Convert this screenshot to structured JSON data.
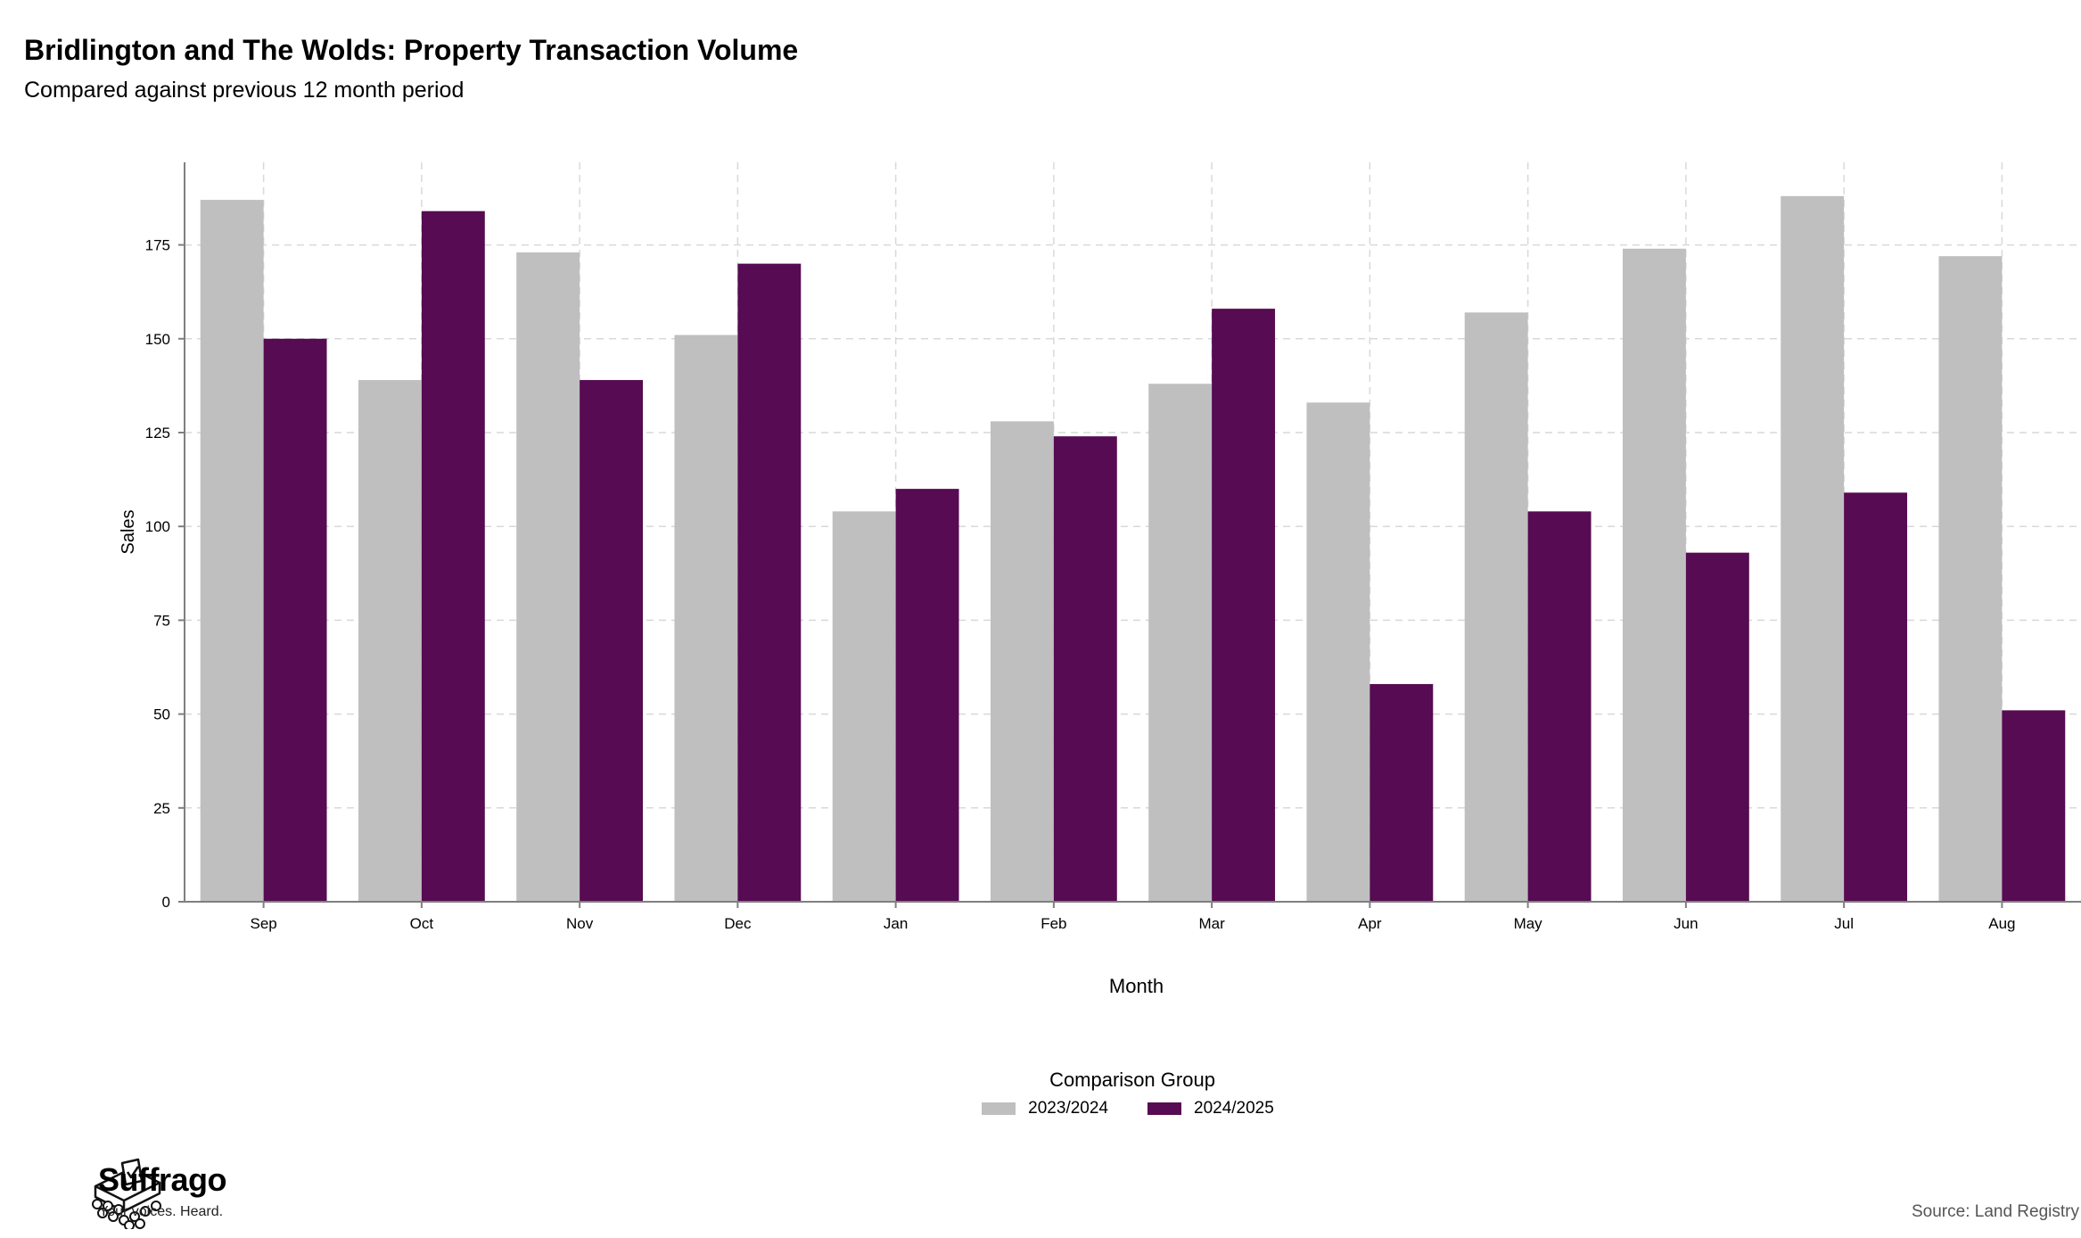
{
  "title": "Bridlington and The Wolds: Property Transaction Volume",
  "subtitle": "Compared against previous 12 month period",
  "source": "Source: Land Registry",
  "brand": {
    "name": "Suffrago",
    "tagline": "Your voices. Heard."
  },
  "legend": {
    "title": "Comparison Group"
  },
  "colors": {
    "series1": "#bfbfbf",
    "series2": "#560b52",
    "grid": "#d9d9d9",
    "axis": "#7f7f7f"
  },
  "chart_data": {
    "type": "bar",
    "categories": [
      "Sep",
      "Oct",
      "Nov",
      "Dec",
      "Jan",
      "Feb",
      "Mar",
      "Apr",
      "May",
      "Jun",
      "Jul",
      "Aug"
    ],
    "series": [
      {
        "name": "2023/2024",
        "values": [
          187,
          139,
          173,
          151,
          104,
          128,
          138,
          133,
          157,
          174,
          188,
          172
        ]
      },
      {
        "name": "2024/2025",
        "values": [
          150,
          184,
          139,
          170,
          110,
          124,
          158,
          58,
          104,
          93,
          109,
          51
        ]
      }
    ],
    "xlabel": "Month",
    "ylabel": "Sales",
    "ylim": [
      0,
      197
    ],
    "yticks": [
      0,
      25,
      50,
      75,
      100,
      125,
      150,
      175
    ],
    "grid": true,
    "legend_position": "bottom"
  }
}
